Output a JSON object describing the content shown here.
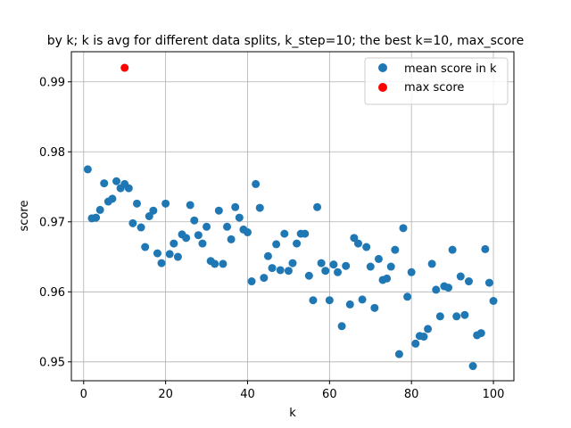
{
  "chart_data": {
    "type": "scatter",
    "title": "by k; k is avg for different data splits, k_step=10; the best k=10, max_score",
    "xlabel": "k",
    "ylabel": "score",
    "xlim": [
      -3,
      105
    ],
    "ylim": [
      0.9473,
      0.9943
    ],
    "xticks": [
      0,
      20,
      40,
      60,
      80,
      100
    ],
    "yticks": [
      0.95,
      0.96,
      0.97,
      0.98,
      0.99
    ],
    "xtick_labels": [
      "0",
      "20",
      "40",
      "60",
      "80",
      "100"
    ],
    "ytick_labels": [
      "0.95",
      "0.96",
      "0.97",
      "0.98",
      "0.99"
    ],
    "grid": true,
    "legend_position": "upper right",
    "series": [
      {
        "name": "mean score in k",
        "color": "#1f77b4",
        "x": [
          1,
          2,
          3,
          4,
          5,
          6,
          7,
          8,
          9,
          10,
          11,
          12,
          13,
          14,
          15,
          16,
          17,
          18,
          19,
          20,
          21,
          22,
          23,
          24,
          25,
          26,
          27,
          28,
          29,
          30,
          31,
          32,
          33,
          34,
          35,
          36,
          37,
          38,
          39,
          40,
          41,
          42,
          43,
          44,
          45,
          46,
          47,
          48,
          49,
          50,
          51,
          52,
          53,
          54,
          55,
          56,
          57,
          58,
          59,
          60,
          61,
          62,
          63,
          64,
          65,
          66,
          67,
          68,
          69,
          70,
          71,
          72,
          73,
          74,
          75,
          76,
          77,
          78,
          79,
          80,
          81,
          82,
          83,
          84,
          85,
          86,
          87,
          88,
          89,
          90,
          91,
          92,
          93,
          94,
          95,
          96,
          97,
          98,
          99,
          100
        ],
        "y": [
          0.9775,
          0.9705,
          0.9706,
          0.9717,
          0.9755,
          0.9729,
          0.9733,
          0.9758,
          0.9748,
          0.9754,
          0.9748,
          0.9698,
          0.9726,
          0.9692,
          0.9664,
          0.9708,
          0.9716,
          0.9655,
          0.9641,
          0.9726,
          0.9654,
          0.9669,
          0.965,
          0.9682,
          0.9677,
          0.9724,
          0.9702,
          0.9681,
          0.9669,
          0.9693,
          0.9644,
          0.964,
          0.9716,
          0.964,
          0.9693,
          0.9675,
          0.9721,
          0.9706,
          0.9689,
          0.9685,
          0.9615,
          0.9754,
          0.972,
          0.962,
          0.9651,
          0.9634,
          0.9668,
          0.9631,
          0.9683,
          0.963,
          0.9641,
          0.9669,
          0.9683,
          0.9683,
          0.9623,
          0.9588,
          0.9721,
          0.9641,
          0.963,
          0.9588,
          0.9639,
          0.9628,
          0.9551,
          0.9637,
          0.9582,
          0.9677,
          0.9669,
          0.9589,
          0.9664,
          0.9636,
          0.9577,
          0.9647,
          0.9617,
          0.9619,
          0.9636,
          0.966,
          0.9511,
          0.9691,
          0.9593,
          0.9628,
          0.9526,
          0.9537,
          0.9536,
          0.9547,
          0.964,
          0.9603,
          0.9565,
          0.9608,
          0.9606,
          0.966,
          0.9565,
          0.9622,
          0.9567,
          0.9615,
          0.9494,
          0.9538,
          0.9541,
          0.9661,
          0.9613,
          0.9587
        ]
      },
      {
        "name": "max score",
        "color": "#ff0000",
        "x": [
          10
        ],
        "y": [
          0.992
        ]
      }
    ]
  }
}
